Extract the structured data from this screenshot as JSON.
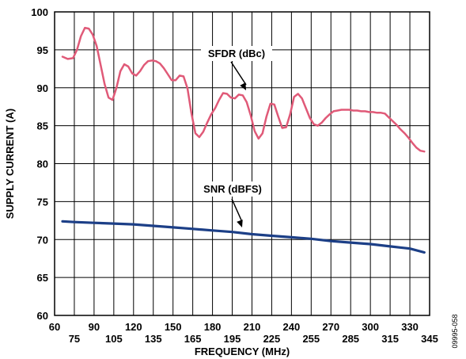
{
  "chart_data": {
    "type": "line",
    "title": "",
    "xlabel": "FREQUENCY (MHz)",
    "ylabel": "SUPPLY CURRENT (A)",
    "xlim": [
      60,
      345
    ],
    "ylim": [
      60,
      100
    ],
    "grid": true,
    "x_ticks_upper": [
      60,
      90,
      120,
      150,
      180,
      210,
      240,
      270,
      300,
      330
    ],
    "x_ticks_lower": [
      75,
      105,
      135,
      165,
      195,
      225,
      255,
      285,
      315,
      345
    ],
    "y_ticks": [
      60,
      65,
      70,
      75,
      80,
      85,
      90,
      95,
      100
    ],
    "x_grid_step": 15,
    "y_grid_step": 5,
    "series": [
      {
        "name": "SFDR (dBc)",
        "color": "#e05a78",
        "x": [
          66,
          70,
          74,
          77,
          80,
          83,
          86,
          89,
          92,
          95,
          98,
          101,
          104,
          107,
          110,
          113,
          116,
          119,
          122,
          125,
          128,
          131,
          134,
          137,
          140,
          143,
          146,
          149,
          152,
          155,
          158,
          161,
          164,
          167,
          170,
          173,
          176,
          179,
          182,
          185,
          188,
          191,
          194,
          197,
          200,
          203,
          206,
          209,
          212,
          215,
          218,
          221,
          224,
          227,
          230,
          233,
          236,
          239,
          242,
          245,
          248,
          251,
          254,
          257,
          260,
          263,
          266,
          269,
          272,
          275,
          278,
          281,
          284,
          287,
          290,
          293,
          296,
          299,
          302,
          305,
          308,
          311,
          314,
          317,
          320,
          323,
          326,
          329,
          332,
          335,
          338,
          341
        ],
        "values": [
          94.1,
          93.8,
          93.9,
          95.0,
          96.8,
          97.9,
          97.8,
          97.0,
          95.5,
          93.0,
          90.5,
          88.7,
          88.4,
          90.0,
          92.2,
          93.1,
          92.8,
          91.9,
          91.6,
          92.2,
          93.0,
          93.5,
          93.6,
          93.5,
          93.2,
          92.6,
          91.8,
          91.0,
          91.0,
          91.6,
          91.5,
          89.9,
          86.6,
          84.0,
          83.5,
          84.2,
          85.4,
          86.5,
          87.3,
          88.4,
          89.3,
          89.2,
          88.7,
          88.6,
          89.1,
          89.0,
          88.1,
          86.4,
          84.3,
          83.3,
          84.0,
          86.2,
          87.9,
          87.8,
          86.2,
          84.7,
          84.8,
          86.5,
          88.8,
          89.2,
          88.6,
          87.3,
          86.0,
          85.2,
          85.0,
          85.4,
          86.0,
          86.5,
          86.9,
          87.0,
          87.1,
          87.1,
          87.1,
          87.0,
          87.0,
          86.9,
          86.9,
          86.8,
          86.8,
          86.7,
          86.7,
          86.6,
          86.1,
          85.6,
          85.1,
          84.5,
          84.0,
          83.4,
          82.7,
          82.1,
          81.7,
          81.6
        ]
      },
      {
        "name": "SNR (dBFS)",
        "color": "#1c3f87",
        "x": [
          66,
          75,
          90,
          105,
          120,
          135,
          150,
          165,
          180,
          195,
          210,
          225,
          240,
          255,
          270,
          285,
          300,
          315,
          330,
          341
        ],
        "values": [
          72.4,
          72.3,
          72.2,
          72.1,
          72.0,
          71.8,
          71.6,
          71.4,
          71.2,
          71.0,
          70.7,
          70.5,
          70.3,
          70.1,
          69.8,
          69.6,
          69.4,
          69.1,
          68.8,
          68.3
        ]
      }
    ],
    "annotations": [
      {
        "text": "SFDR (dBc)",
        "series": "SFDR (dBc)"
      },
      {
        "text": "SNR (dBFS)",
        "series": "SNR (dBFS)"
      }
    ],
    "figure_id": "09995-058"
  }
}
